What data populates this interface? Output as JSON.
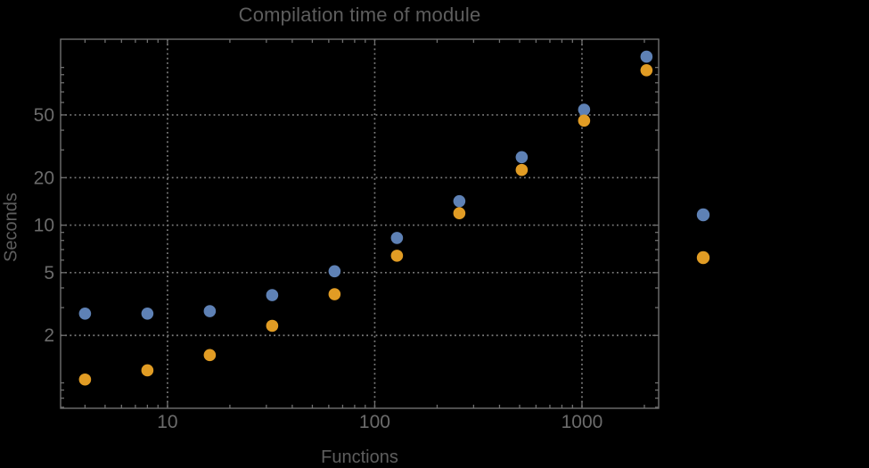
{
  "title": "Compilation time of module",
  "xlabel": "Functions",
  "ylabel": "Seconds",
  "colors": {
    "background": "#000000",
    "frame": "#6f6f6f",
    "grid": "#7d7d7d",
    "title_text": "#5e5e5e",
    "tick_text": "#6b6b6b",
    "series1": "#5E81B5",
    "series2": "#E19C24"
  },
  "axes": {
    "x_major_ticks": [
      10,
      100,
      1000
    ],
    "x_tick_labels": [
      "10",
      "100",
      "1000"
    ],
    "y_major_ticks": [
      2,
      5,
      10,
      20,
      50
    ],
    "y_tick_labels": [
      "2",
      "5",
      "10",
      "20",
      "50"
    ]
  },
  "legend": {
    "markers": [
      {
        "series": "series-1",
        "color": "#5E81B5"
      },
      {
        "series": "series-2",
        "color": "#E19C24"
      }
    ]
  },
  "chart_data": {
    "type": "scatter",
    "title": "Compilation time of module",
    "xlabel": "Functions",
    "ylabel": "Seconds",
    "xscale": "log",
    "yscale": "log",
    "xlim": [
      3.05,
      2344
    ],
    "ylim": [
      0.69,
      151
    ],
    "grid": "major-dotted",
    "legend_position": "right-outside",
    "x": [
      4,
      8,
      16,
      32,
      64,
      128,
      256,
      512,
      1024,
      2048
    ],
    "series": [
      {
        "name": "series-1",
        "color": "#5E81B5",
        "values": [
          2.75,
          2.75,
          2.85,
          3.6,
          5.1,
          8.3,
          14.2,
          27,
          54,
          117
        ]
      },
      {
        "name": "series-2",
        "color": "#E19C24",
        "values": [
          1.05,
          1.2,
          1.5,
          2.3,
          3.65,
          6.4,
          11.9,
          22.4,
          46,
          96
        ]
      }
    ]
  }
}
